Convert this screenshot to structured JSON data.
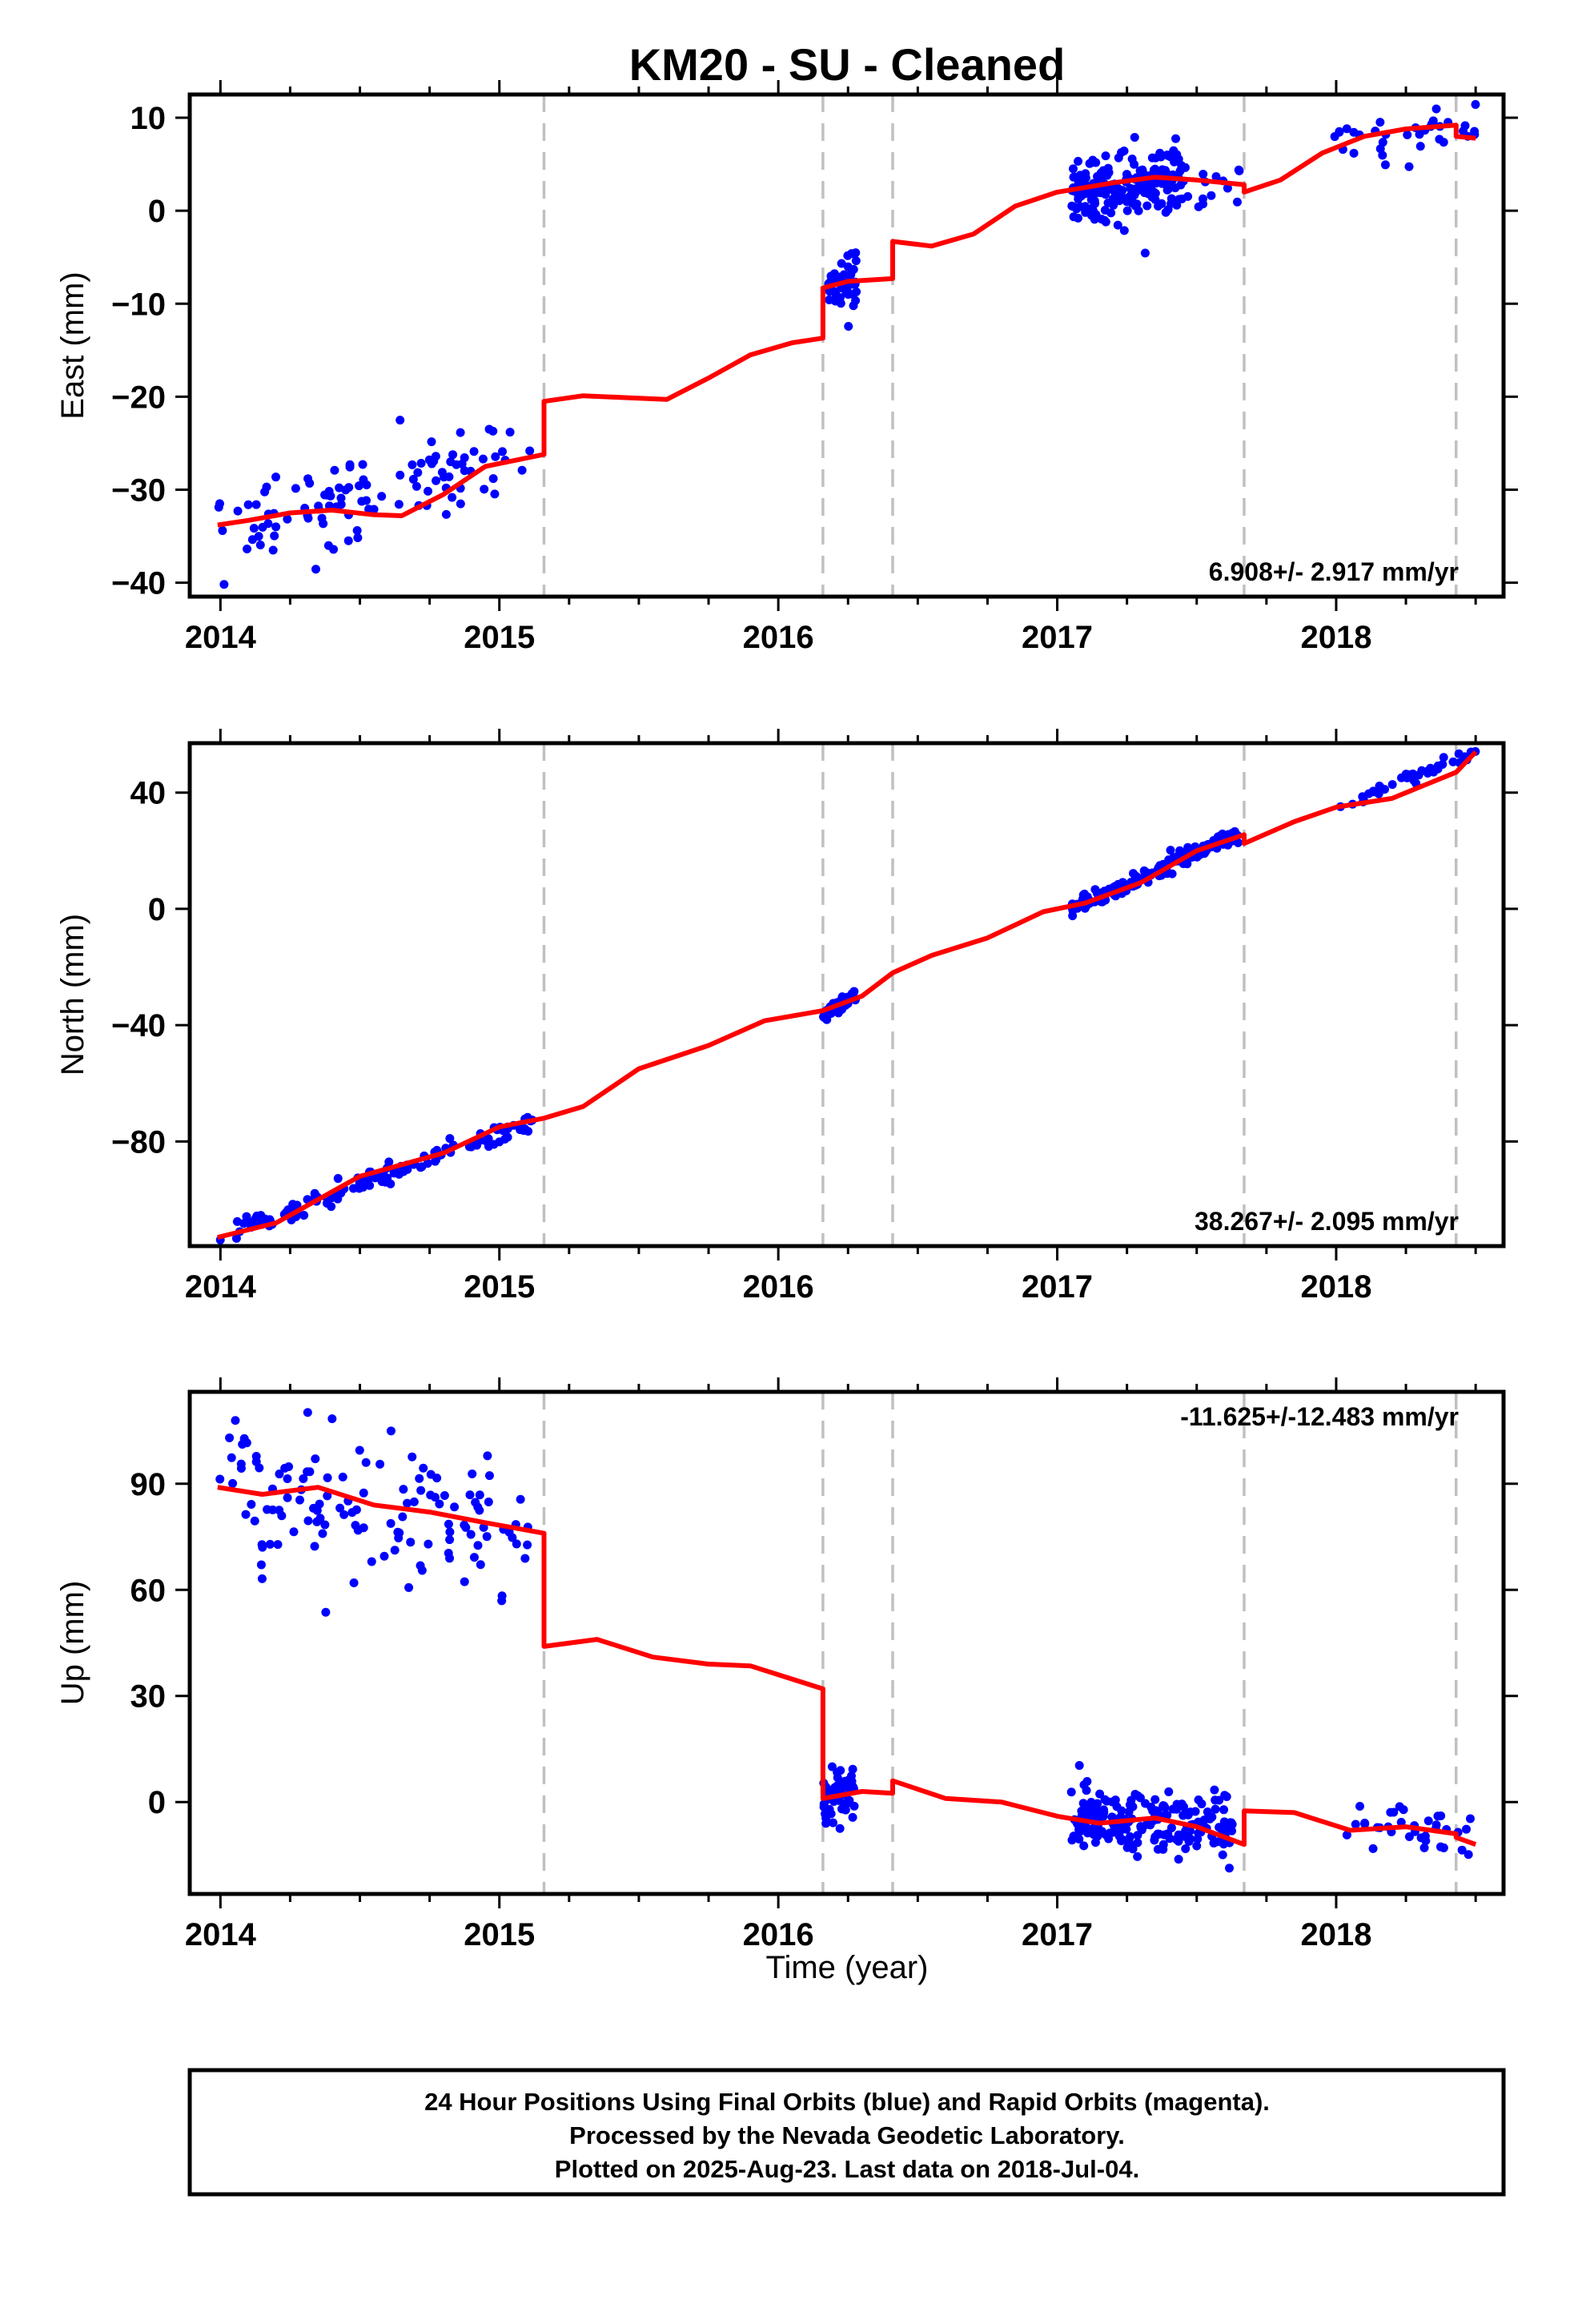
{
  "title": "KM20  - SU - Cleaned",
  "xlabel": "Time (year)",
  "footer": [
    "24 Hour Positions Using Final Orbits (blue) and Rapid Orbits (magenta).",
    "Processed by the Nevada Geodetic Laboratory.",
    "Plotted on 2025-Aug-23. Last data on 2018-Jul-04."
  ],
  "colors": {
    "observations": "#0000ff",
    "model": "#ff0000",
    "offsets": "#c0c0c0"
  },
  "chart_data": [
    {
      "type": "scatter",
      "name": "east",
      "ylabel": "East (mm)",
      "rate": "6.908+/- 2.917 mm/yr",
      "xlim": [
        2013.89,
        2018.6
      ],
      "ylim": [
        -41.5,
        12.5
      ],
      "xticks": [
        2014,
        2015,
        2016,
        2017,
        2018
      ],
      "yticks": [
        10,
        0,
        -10,
        -20,
        -30,
        -40
      ],
      "offsets": [
        2015.16,
        2016.16,
        2016.41,
        2017.67,
        2018.43
      ],
      "model": [
        [
          [
            2013.99,
            -33.8
          ],
          [
            2014.1,
            -33.3
          ],
          [
            2014.25,
            -32.5
          ],
          [
            2014.4,
            -32.2
          ],
          [
            2014.55,
            -32.7
          ],
          [
            2014.65,
            -32.8
          ],
          [
            2014.8,
            -30.5
          ],
          [
            2014.95,
            -27.5
          ],
          [
            2015.16,
            -26.2
          ]
        ],
        [
          [
            2015.16,
            -20.5
          ],
          [
            2015.3,
            -19.9
          ],
          [
            2015.45,
            -20.1
          ],
          [
            2015.6,
            -20.3
          ],
          [
            2015.75,
            -18.0
          ],
          [
            2015.9,
            -15.5
          ],
          [
            2016.05,
            -14.2
          ],
          [
            2016.16,
            -13.7
          ]
        ],
        [
          [
            2016.16,
            -8.3
          ],
          [
            2016.25,
            -7.6
          ],
          [
            2016.41,
            -7.3
          ]
        ],
        [
          [
            2016.41,
            -3.3
          ],
          [
            2016.55,
            -3.8
          ],
          [
            2016.7,
            -2.5
          ],
          [
            2016.85,
            0.5
          ],
          [
            2017.0,
            2.0
          ],
          [
            2017.2,
            3.0
          ],
          [
            2017.35,
            3.6
          ],
          [
            2017.5,
            3.3
          ],
          [
            2017.67,
            2.8
          ]
        ],
        [
          [
            2017.67,
            2.0
          ],
          [
            2017.8,
            3.3
          ],
          [
            2017.95,
            6.2
          ],
          [
            2018.1,
            8.0
          ],
          [
            2018.25,
            8.8
          ],
          [
            2018.43,
            9.2
          ]
        ],
        [
          [
            2018.43,
            8.0
          ],
          [
            2018.5,
            7.8
          ]
        ]
      ],
      "clusters": [
        {
          "x": [
            2013.99,
            2015.12
          ],
          "trend": [
            -34.0,
            -26.0
          ],
          "spread": 2.3,
          "n": 110
        },
        {
          "x": [
            2016.18,
            2016.28
          ],
          "trend": [
            -8.3,
            -7.3
          ],
          "spread": 1.2,
          "n": 55
        },
        {
          "x": [
            2017.05,
            2017.45
          ],
          "trend": [
            2.0,
            3.5
          ],
          "spread": 1.8,
          "n": 200
        },
        {
          "x": [
            2017.45,
            2017.66
          ],
          "trend": [
            3.2,
            2.8
          ],
          "spread": 1.5,
          "n": 15
        },
        {
          "x": [
            2017.99,
            2018.5
          ],
          "trend": [
            8.0,
            8.5
          ],
          "spread": 1.4,
          "n": 35
        }
      ]
    },
    {
      "type": "scatter",
      "name": "north",
      "ylabel": "North (mm)",
      "rate": "38.267+/- 2.095 mm/yr",
      "xlim": [
        2013.89,
        2018.6
      ],
      "ylim": [
        -116,
        57
      ],
      "xticks": [
        2014,
        2015,
        2016,
        2017,
        2018
      ],
      "yticks": [
        40,
        0,
        -40,
        -80
      ],
      "offsets": [
        2015.16,
        2016.16,
        2016.41,
        2017.67,
        2018.43
      ],
      "model": [
        [
          [
            2013.99,
            -113.0
          ],
          [
            2014.2,
            -108.0
          ],
          [
            2014.5,
            -92.0
          ],
          [
            2014.8,
            -84.0
          ],
          [
            2015.0,
            -75.0
          ],
          [
            2015.16,
            -72.0
          ],
          [
            2015.3,
            -68.0
          ],
          [
            2015.5,
            -55.0
          ],
          [
            2015.75,
            -47.0
          ],
          [
            2015.95,
            -38.5
          ],
          [
            2016.16,
            -35.0
          ],
          [
            2016.3,
            -30.0
          ],
          [
            2016.41,
            -22.0
          ],
          [
            2016.55,
            -16.0
          ],
          [
            2016.75,
            -10.0
          ],
          [
            2016.95,
            -1.0
          ],
          [
            2017.1,
            2.0
          ],
          [
            2017.3,
            9.0
          ],
          [
            2017.5,
            20.0
          ],
          [
            2017.67,
            25.5
          ]
        ],
        [
          [
            2017.67,
            22.5
          ],
          [
            2017.85,
            30.0
          ],
          [
            2018.0,
            35.0
          ],
          [
            2018.2,
            38.0
          ],
          [
            2018.43,
            47.0
          ],
          [
            2018.5,
            54.0
          ]
        ]
      ],
      "clusters": [
        {
          "x": [
            2013.99,
            2015.12
          ],
          "trend": [
            -113.0,
            -73.0
          ],
          "spread": 1.8,
          "n": 140
        },
        {
          "x": [
            2016.16,
            2016.28
          ],
          "trend": [
            -37.0,
            -29.0
          ],
          "spread": 1.0,
          "n": 50
        },
        {
          "x": [
            2017.05,
            2017.65
          ],
          "trend": [
            0.0,
            26.0
          ],
          "spread": 1.5,
          "n": 170
        },
        {
          "x": [
            2018.0,
            2018.5
          ],
          "trend": [
            35.0,
            54.0
          ],
          "spread": 1.2,
          "n": 40
        }
      ]
    },
    {
      "type": "scatter",
      "name": "up",
      "ylabel": "Up (mm)",
      "rate": "-11.625+/-12.483 mm/yr",
      "xlim": [
        2013.89,
        2018.6
      ],
      "ylim": [
        -26,
        116
      ],
      "xticks": [
        2014,
        2015,
        2016,
        2017,
        2018
      ],
      "yticks": [
        90,
        60,
        30,
        0
      ],
      "offsets": [
        2015.16,
        2016.16,
        2016.41,
        2017.67,
        2018.43
      ],
      "model": [
        [
          [
            2013.99,
            89.0
          ],
          [
            2014.15,
            87.0
          ],
          [
            2014.35,
            89.0
          ],
          [
            2014.55,
            84.0
          ],
          [
            2014.75,
            82.0
          ],
          [
            2014.95,
            79.0
          ],
          [
            2015.16,
            76.0
          ]
        ],
        [
          [
            2015.16,
            44.0
          ],
          [
            2015.35,
            46.0
          ],
          [
            2015.55,
            41.0
          ],
          [
            2015.75,
            39.0
          ],
          [
            2015.9,
            38.5
          ],
          [
            2016.16,
            32.0
          ]
        ],
        [
          [
            2016.16,
            1.0
          ],
          [
            2016.3,
            3.0
          ],
          [
            2016.41,
            2.5
          ]
        ],
        [
          [
            2016.41,
            6.0
          ],
          [
            2016.6,
            1.0
          ],
          [
            2016.8,
            0.0
          ],
          [
            2017.0,
            -4.0
          ],
          [
            2017.15,
            -6.0
          ],
          [
            2017.35,
            -4.5
          ],
          [
            2017.5,
            -7.0
          ],
          [
            2017.67,
            -12.0
          ]
        ],
        [
          [
            2017.67,
            -2.5
          ],
          [
            2017.85,
            -3.0
          ],
          [
            2018.05,
            -8.0
          ],
          [
            2018.25,
            -7.0
          ],
          [
            2018.43,
            -9.0
          ]
        ],
        [
          [
            2018.43,
            -10.0
          ],
          [
            2018.5,
            -12.0
          ]
        ]
      ],
      "clusters": [
        {
          "x": [
            2013.99,
            2015.12
          ],
          "trend": [
            89.0,
            76.0
          ],
          "spread": 8.0,
          "n": 130
        },
        {
          "x": [
            2016.16,
            2016.28
          ],
          "trend": [
            1.0,
            3.0
          ],
          "spread": 4.5,
          "n": 55
        },
        {
          "x": [
            2017.05,
            2017.65
          ],
          "trend": [
            -5.0,
            -7.0
          ],
          "spread": 4.5,
          "n": 200
        },
        {
          "x": [
            2018.0,
            2018.5
          ],
          "trend": [
            -6.0,
            -9.0
          ],
          "spread": 4.0,
          "n": 35
        }
      ]
    }
  ]
}
